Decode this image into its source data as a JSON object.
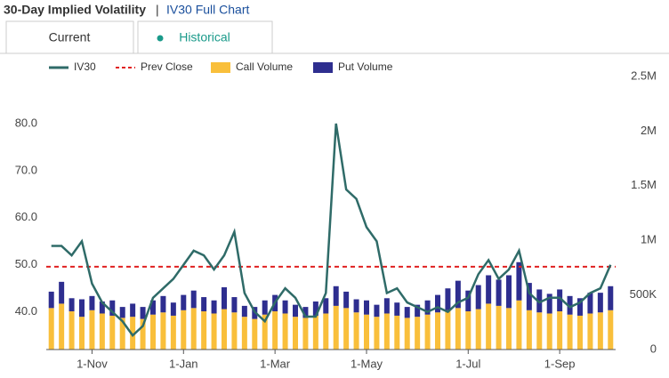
{
  "header": {
    "title": "30-Day Implied Volatility",
    "link": "IV30 Full Chart"
  },
  "tabs": [
    "Current",
    "Historical"
  ],
  "chart_data": {
    "type": "combo",
    "categories": [
      null,
      null,
      null,
      null,
      "1-Nov",
      null,
      null,
      null,
      null,
      null,
      null,
      null,
      null,
      "1-Jan",
      null,
      null,
      null,
      null,
      null,
      null,
      null,
      null,
      "1-Mar",
      null,
      null,
      null,
      null,
      null,
      null,
      null,
      null,
      "1-May",
      null,
      null,
      null,
      null,
      null,
      null,
      null,
      null,
      null,
      "1-Jul",
      null,
      null,
      null,
      null,
      null,
      null,
      null,
      null,
      "1-Sep",
      null,
      null,
      null,
      null,
      null
    ],
    "series": [
      {
        "name": "IV30",
        "type": "line",
        "color": "#2f6b68",
        "values": [
          54,
          54,
          52,
          55,
          46,
          42,
          40,
          38,
          35,
          37,
          43,
          45,
          47,
          50,
          53,
          52,
          49,
          52,
          57,
          44,
          40,
          38,
          42,
          45,
          43,
          39,
          39,
          44,
          80,
          66,
          64,
          58,
          55,
          44,
          45,
          42,
          41,
          40,
          41,
          40,
          42,
          43,
          48,
          51,
          47,
          49,
          53,
          44,
          42,
          43,
          43,
          41,
          42,
          44,
          45,
          50
        ]
      },
      {
        "name": "Call Volume",
        "type": "bar",
        "axis": "y2",
        "color": "#f9bf3b",
        "values": [
          380000,
          420000,
          350000,
          300000,
          360000,
          330000,
          310000,
          290000,
          300000,
          280000,
          320000,
          340000,
          310000,
          360000,
          380000,
          350000,
          330000,
          370000,
          340000,
          300000,
          280000,
          320000,
          350000,
          330000,
          300000,
          290000,
          310000,
          330000,
          400000,
          380000,
          340000,
          320000,
          300000,
          330000,
          310000,
          290000,
          300000,
          320000,
          340000,
          360000,
          380000,
          350000,
          370000,
          420000,
          400000,
          380000,
          450000,
          360000,
          340000,
          330000,
          350000,
          320000,
          310000,
          330000,
          340000,
          360000
        ]
      },
      {
        "name": "Put Volume",
        "type": "bar",
        "axis": "y2",
        "color": "#2e2e8f",
        "values": [
          150000,
          200000,
          120000,
          160000,
          130000,
          110000,
          140000,
          100000,
          120000,
          110000,
          130000,
          150000,
          120000,
          140000,
          160000,
          130000,
          120000,
          200000,
          140000,
          100000,
          110000,
          130000,
          150000,
          120000,
          110000,
          100000,
          130000,
          140000,
          180000,
          150000,
          120000,
          130000,
          110000,
          140000,
          120000,
          100000,
          110000,
          130000,
          160000,
          200000,
          250000,
          190000,
          220000,
          260000,
          240000,
          300000,
          350000,
          250000,
          210000,
          180000,
          200000,
          170000,
          160000,
          190000,
          180000,
          220000
        ]
      }
    ],
    "reference_line": {
      "name": "Prev Close",
      "value": 49.6,
      "color": "#e02020"
    },
    "ylim": [
      32,
      90
    ],
    "yticks": [
      {
        "value": 40,
        "label": "40.0"
      },
      {
        "value": 50,
        "label": "50.0"
      },
      {
        "value": 60,
        "label": "60.0"
      },
      {
        "value": 70,
        "label": "70.0"
      },
      {
        "value": 80,
        "label": "80.0"
      }
    ],
    "y2lim": [
      0,
      2500000
    ],
    "y2ticks": [
      0,
      {
        "value": 500000,
        "label": "500K"
      },
      {
        "value": 1000000,
        "label": "1M"
      },
      {
        "value": 1500000,
        "label": "1.5M"
      },
      {
        "value": 2000000,
        "label": "2M"
      },
      {
        "value": 2500000,
        "label": "2.5M"
      }
    ],
    "grid": false
  }
}
